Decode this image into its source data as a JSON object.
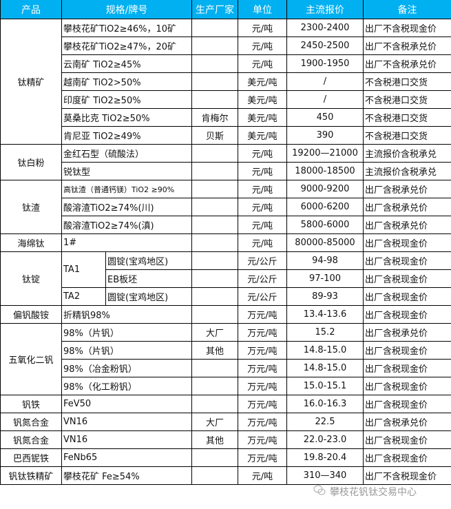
{
  "header": {
    "product": "产品",
    "spec": "规格/牌号",
    "maker": "生产厂家",
    "unit": "单位",
    "price": "主流报价",
    "note": "备注"
  },
  "header_color": "#00b0f0",
  "groups": [
    {
      "product": "钛精矿",
      "rows": [
        {
          "spec": "攀枝花矿TiO2≥46%，10矿",
          "maker": "",
          "unit": "元/吨",
          "price": "2300-2400",
          "note": "出厂不含税现金价"
        },
        {
          "spec": "攀枝花矿TiO2≥47%，20矿",
          "maker": "",
          "unit": "元/吨",
          "price": "2450-2500",
          "note": "出厂不含税承兑价"
        },
        {
          "spec": "云南矿 TiO2≥45%",
          "maker": "",
          "unit": "元/吨",
          "price": "1900-1950",
          "note": "出厂不含税承兑价"
        },
        {
          "spec": "越南矿 TiO2>50%",
          "maker": "",
          "unit": "美元/吨",
          "price": "/",
          "note": "不含税港口交货"
        },
        {
          "spec": "印度矿 TiO2≥50%",
          "maker": "",
          "unit": "美元/吨",
          "price": "/",
          "note": "不含税港口交货"
        },
        {
          "spec": "莫桑比克 TiO2≥50%",
          "maker": "肯梅尔",
          "unit": "美元/吨",
          "price": "450",
          "note": "不含税港口交货"
        },
        {
          "spec": "肯尼亚 TiO2≥49%",
          "maker": "贝斯",
          "unit": "美元/吨",
          "price": "390",
          "note": "不含税港口交货"
        }
      ]
    },
    {
      "product": "钛白粉",
      "rows": [
        {
          "spec": "金红石型（硫酸法）",
          "maker": "",
          "unit": "元/吨",
          "price": "19200—21000",
          "note": "主流报价含税承兑"
        },
        {
          "spec": "锐钛型",
          "maker": "",
          "unit": "元/吨",
          "price": "18000-18500",
          "note": "主流报价含税承兑"
        }
      ]
    },
    {
      "product": "钛渣",
      "rows": [
        {
          "spec": "高钛渣（普通钙镁）TiO2 ≥90%",
          "maker": "",
          "unit": "元/吨",
          "price": "9000-9200",
          "note": "出厂含税承兑价",
          "small": true
        },
        {
          "spec": "酸溶渣TiO2≥74%(川)",
          "maker": "",
          "unit": "元/吨",
          "price": "6000-6200",
          "note": "出厂含税承兑价"
        },
        {
          "spec": "酸溶渣TiO2≥74%(滇)",
          "maker": "",
          "unit": "元/吨",
          "price": "5800-6000",
          "note": "出厂含税承兑价"
        }
      ]
    },
    {
      "product": "海绵钛",
      "rows": [
        {
          "spec": "1#",
          "maker": "",
          "unit": "元/吨",
          "price": "80000-85000",
          "note": "出厂含税现金价"
        }
      ]
    },
    {
      "product": "钛锭",
      "split": true,
      "rows": [
        {
          "spec": "TA1",
          "sub": "圆锭(宝鸡地区)",
          "unit": "元/公斤",
          "price": "94-98",
          "note": "出厂含税现金价"
        },
        {
          "sub": "EB板坯",
          "unit": "元/公斤",
          "price": "97-100",
          "note": "出厂含税现金价"
        },
        {
          "spec": "TA2",
          "sub": "圆锭(宝鸡地区)",
          "unit": "元/公斤",
          "price": "89-93",
          "note": "出厂含税现金价"
        }
      ]
    },
    {
      "product": "偏钒酸铵",
      "rows": [
        {
          "spec": "折精钒98%",
          "maker": "",
          "unit": "万元/吨",
          "price": "13.4-13.6",
          "note": "出厂含税现金价"
        }
      ]
    },
    {
      "product": "五氧化二钒",
      "rows": [
        {
          "spec": "98%（片钒）",
          "maker": "大厂",
          "unit": "万元/吨",
          "price": "15.2",
          "note": "出厂含税承兑价"
        },
        {
          "spec": "98%（片钒）",
          "maker": "其他",
          "unit": "万元/吨",
          "price": "14.8-15.0",
          "note": "出厂含税现金价"
        },
        {
          "spec": "98%（冶金粉钒）",
          "maker": "",
          "unit": "万元/吨",
          "price": "14.8-15.0",
          "note": "出厂含税现金价"
        },
        {
          "spec": "98%（化工粉钒）",
          "maker": "",
          "unit": "万元/吨",
          "price": "15.0-15.1",
          "note": "出厂含税现金价"
        }
      ]
    },
    {
      "product": "钒铁",
      "rows": [
        {
          "spec": "FeV50",
          "maker": "",
          "unit": "万元/吨",
          "price": "16.0-16.3",
          "note": "出厂含税现金价"
        }
      ]
    },
    {
      "product": "钒氮合金",
      "rows": [
        {
          "spec": "VN16",
          "maker": "大厂",
          "unit": "万元/吨",
          "price": "22.5",
          "note": "出厂含税承兑价"
        }
      ]
    },
    {
      "product": "钒氮合金",
      "rows": [
        {
          "spec": "VN16",
          "maker": "其他",
          "unit": "万元/吨",
          "price": "22.0-23.0",
          "note": "出厂含税现金价"
        }
      ]
    },
    {
      "product": "巴西铌铁",
      "rows": [
        {
          "spec": "FeNb65",
          "maker": "",
          "unit": "万元/吨",
          "price": "19.8-20.4",
          "note": "出厂含税现金价"
        }
      ]
    },
    {
      "product": "钒钛铁精矿",
      "rows": [
        {
          "spec": "攀枝花矿 Fe≥54%",
          "maker": "",
          "unit": "元/吨",
          "price": "310—340",
          "note": "出厂不含税现金价"
        }
      ]
    }
  ],
  "watermark": {
    "text": "攀枝花钒钛交易中心",
    "icon": "wechat-icon"
  }
}
